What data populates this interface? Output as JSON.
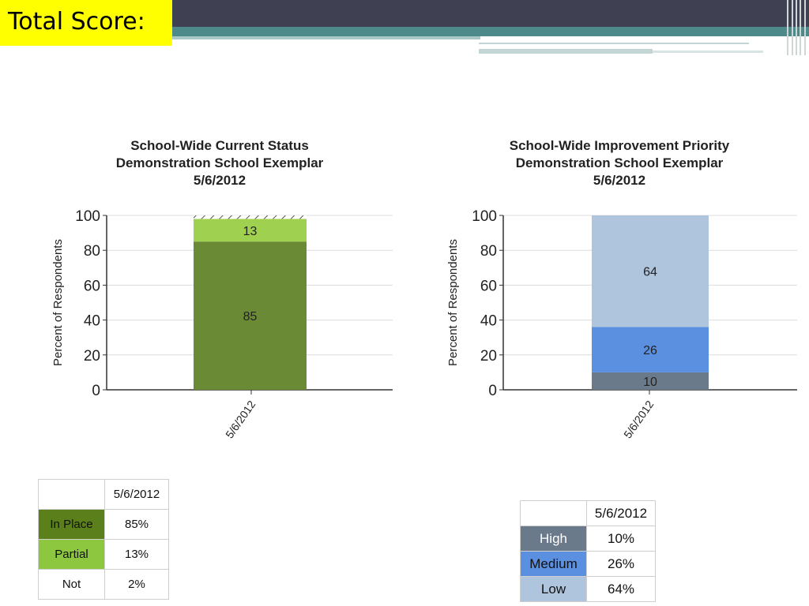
{
  "slide": {
    "title": "Total Score:"
  },
  "chart_data": [
    {
      "type": "bar",
      "stacked": true,
      "title": "School-Wide Current Status",
      "subtitle": "Demonstration School Exemplar",
      "date": "5/6/2012",
      "ylabel": "Percent of Respondents",
      "ylim": [
        0,
        100
      ],
      "yticks": [
        "0",
        "20",
        "40",
        "60",
        "80",
        "100"
      ],
      "categories": [
        "5/6/2012"
      ],
      "grid": true,
      "series": [
        {
          "name": "In Place",
          "values": [
            85
          ],
          "color": "#6a8a36"
        },
        {
          "name": "Partial",
          "values": [
            13
          ],
          "color": "#9fd050"
        },
        {
          "name": "Not",
          "values": [
            2
          ],
          "color": "#ffffff",
          "hatched": true
        }
      ],
      "table": {
        "header": "5/6/2012",
        "rows": [
          {
            "label": "In Place",
            "value": "85%",
            "color": "#5b7f1a"
          },
          {
            "label": "Partial",
            "value": "13%",
            "color": "#8dc63f"
          },
          {
            "label": "Not",
            "value": "2%",
            "color": "#ffffff"
          }
        ]
      }
    },
    {
      "type": "bar",
      "stacked": true,
      "title": "School-Wide Improvement Priority",
      "subtitle": "Demonstration School Exemplar",
      "date": "5/6/2012",
      "ylabel": "Percent of Respondents",
      "ylim": [
        0,
        100
      ],
      "yticks": [
        "0",
        "20",
        "40",
        "60",
        "80",
        "100"
      ],
      "categories": [
        "5/6/2012"
      ],
      "grid": true,
      "series": [
        {
          "name": "High",
          "values": [
            10
          ],
          "color": "#6b7a8a"
        },
        {
          "name": "Medium",
          "values": [
            26
          ],
          "color": "#5b8fe0"
        },
        {
          "name": "Low",
          "values": [
            64
          ],
          "color": "#afc4dd"
        }
      ],
      "table": {
        "header": "5/6/2012",
        "rows": [
          {
            "label": "High",
            "value": "10%",
            "color": "#6b7a8a",
            "textColor": "#ffffff"
          },
          {
            "label": "Medium",
            "value": "26%",
            "color": "#5b8fe0"
          },
          {
            "label": "Low",
            "value": "64%",
            "color": "#afc4dd"
          }
        ]
      }
    }
  ]
}
